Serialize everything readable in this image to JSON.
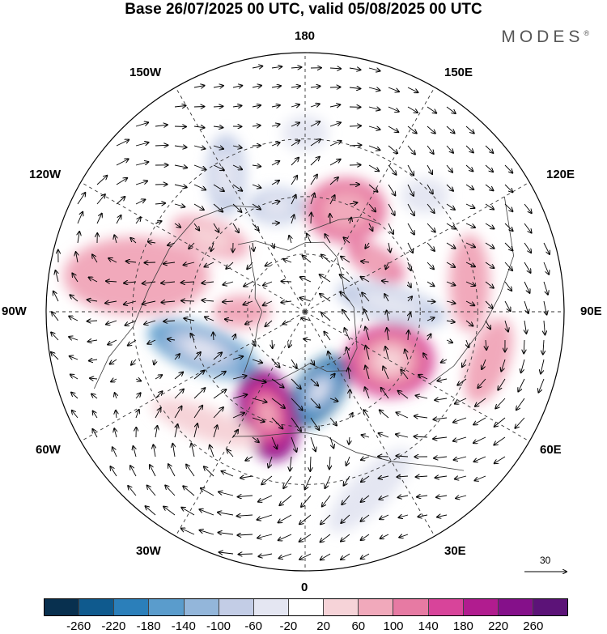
{
  "title": "Base 26/07/2025 00 UTC, valid 05/08/2025 00 UTC",
  "brand": "MODES",
  "brand_mark": "®",
  "longitude_labels": {
    "top": "180",
    "bottom": "0",
    "left": "90W",
    "right": "90E",
    "upper_left_1": "150W",
    "upper_left_2": "120W",
    "lower_left_1": "60W",
    "lower_left_2": "30W",
    "upper_right_1": "150E",
    "upper_right_2": "120E",
    "lower_right_1": "60E",
    "lower_right_2": "30E"
  },
  "wind_scale_label": "30",
  "colorbar": {
    "ticks": [
      "-260",
      "-220",
      "-180",
      "-140",
      "-100",
      "-60",
      "-20",
      "20",
      "60",
      "100",
      "140",
      "180",
      "220",
      "260"
    ],
    "colors": [
      "#08304f",
      "#0f5a8e",
      "#2b7fba",
      "#5a9ccc",
      "#93b6da",
      "#c3cde6",
      "#e4e6f2",
      "#ffffff",
      "#f6d3d8",
      "#f1a9bb",
      "#e77aa3",
      "#d8449a",
      "#b11c8f",
      "#85108a",
      "#5c1378"
    ]
  },
  "anomalies": [
    {
      "lon": 10,
      "colat": 28,
      "rx": 28,
      "ry": 50,
      "rot": 35,
      "value": -240
    },
    {
      "lon": 340,
      "colat": 38,
      "rx": 36,
      "ry": 58,
      "rot": -15,
      "value": 220
    },
    {
      "lon": 290,
      "colat": 38,
      "rx": 70,
      "ry": 28,
      "rot": 20,
      "value": -180
    },
    {
      "lon": 60,
      "colat": 34,
      "rx": 55,
      "ry": 45,
      "rot": 0,
      "value": 160
    },
    {
      "lon": 95,
      "colat": 30,
      "rx": 70,
      "ry": 22,
      "rot": 15,
      "value": -100
    },
    {
      "lon": 100,
      "colat": 58,
      "rx": 25,
      "ry": 60,
      "rot": 0,
      "value": 60
    },
    {
      "lon": 158,
      "colat": 38,
      "rx": 50,
      "ry": 40,
      "rot": 0,
      "value": 100
    },
    {
      "lon": 125,
      "colat": 30,
      "rx": 40,
      "ry": 18,
      "rot": 30,
      "value": 100
    },
    {
      "lon": 195,
      "colat": 38,
      "rx": 35,
      "ry": 22,
      "rot": 0,
      "value": -100
    },
    {
      "lon": 210,
      "colat": 55,
      "rx": 24,
      "ry": 50,
      "rot": 0,
      "value": -80
    },
    {
      "lon": 232,
      "colat": 42,
      "rx": 50,
      "ry": 22,
      "rot": 20,
      "value": 80
    },
    {
      "lon": 258,
      "colat": 60,
      "rx": 90,
      "ry": 48,
      "rot": 0,
      "value": 60
    },
    {
      "lon": 134,
      "colat": 58,
      "rx": 30,
      "ry": 22,
      "rot": 0,
      "value": -60
    },
    {
      "lon": 180,
      "colat": 62,
      "rx": 28,
      "ry": 22,
      "rot": 0,
      "value": -60
    },
    {
      "lon": 20,
      "colat": 66,
      "rx": 70,
      "ry": 24,
      "rot": -45,
      "value": -40
    },
    {
      "lon": 318,
      "colat": 52,
      "rx": 70,
      "ry": 20,
      "rot": 20,
      "value": 40
    },
    {
      "lon": 75,
      "colat": 66,
      "rx": 25,
      "ry": 55,
      "rot": 20,
      "value": 60
    },
    {
      "lon": 270,
      "colat": 22,
      "rx": 35,
      "ry": 20,
      "rot": 0,
      "value": 60
    }
  ]
}
